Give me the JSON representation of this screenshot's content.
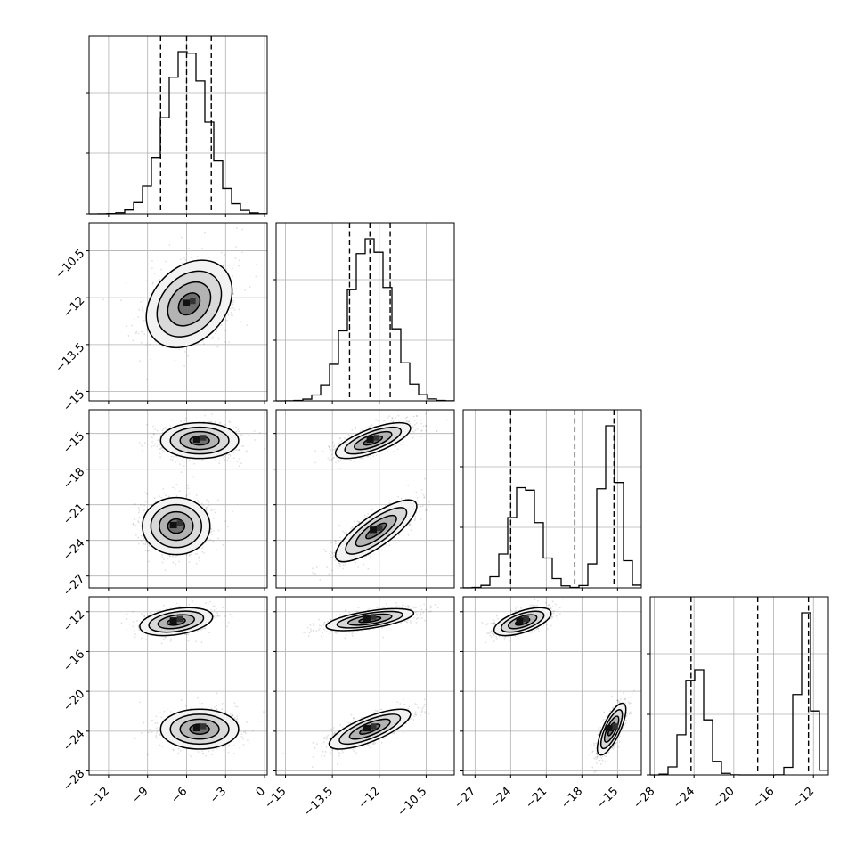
{
  "chart_data": {
    "type": "corner",
    "grid": true,
    "variables": [
      {
        "range": [
          -13.5,
          0.2
        ],
        "ticks": [
          -12,
          -9,
          -6,
          -3,
          0
        ],
        "mixture": [
          {
            "w": 1.0,
            "mean": -6.0,
            "sd": 1.6
          }
        ],
        "quantiles": [
          -8.0,
          -6.0,
          -4.1
        ]
      },
      {
        "range": [
          -15.3,
          -9.6
        ],
        "ticks": [
          -15.0,
          -13.5,
          -12.0,
          -10.5
        ],
        "mixture": [
          {
            "w": 1.0,
            "mean": -12.3,
            "sd": 0.66
          }
        ],
        "quantiles": [
          -12.95,
          -12.3,
          -11.65
        ]
      },
      {
        "range": [
          -28,
          -13
        ],
        "ticks": [
          -27,
          -24,
          -21,
          -18,
          -15
        ],
        "mixture": [
          {
            "w": 0.5,
            "mean": -22.8,
            "sd": 1.2
          },
          {
            "w": 0.5,
            "mean": -15.6,
            "sd": 0.75
          }
        ],
        "quantiles": [
          -24.0,
          -18.6,
          -15.3
        ]
      },
      {
        "range": [
          -28.4,
          -10.5
        ],
        "ticks": [
          -28,
          -24,
          -20,
          -16,
          -12
        ],
        "mixture": [
          {
            "w": 0.5,
            "mean": -23.8,
            "sd": 1.0
          },
          {
            "w": 0.5,
            "mean": -12.8,
            "sd": 0.65
          }
        ],
        "quantiles": [
          -24.3,
          -17.6,
          -12.5
        ]
      }
    ],
    "pairs": [
      {
        "x": 0,
        "y": 1,
        "clusters": [
          {
            "mx": -5.8,
            "my": -12.2,
            "sx": 1.65,
            "sy": 0.7,
            "rho": 0.3
          }
        ]
      },
      {
        "x": 0,
        "y": 2,
        "clusters": [
          {
            "mx": -5.0,
            "my": -15.6,
            "sx": 1.5,
            "sy": 0.75,
            "rho": 0.0
          },
          {
            "mx": -6.8,
            "my": -22.8,
            "sx": 1.3,
            "sy": 1.2,
            "rho": 0.0
          }
        ]
      },
      {
        "x": 1,
        "y": 2,
        "clusters": [
          {
            "mx": -12.2,
            "my": -15.6,
            "sx": 0.6,
            "sy": 0.75,
            "rho": 0.7
          },
          {
            "mx": -12.1,
            "my": -23.2,
            "sx": 0.65,
            "sy": 1.3,
            "rho": 0.8
          }
        ]
      },
      {
        "x": 0,
        "y": 3,
        "clusters": [
          {
            "mx": -6.8,
            "my": -13.0,
            "sx": 1.4,
            "sy": 0.7,
            "rho": 0.35
          },
          {
            "mx": -5.0,
            "my": -23.8,
            "sx": 1.5,
            "sy": 1.0,
            "rho": 0.0
          }
        ]
      },
      {
        "x": 1,
        "y": 3,
        "clusters": [
          {
            "mx": -12.3,
            "my": -12.8,
            "sx": 0.7,
            "sy": 0.55,
            "rho": 0.6
          },
          {
            "mx": -12.3,
            "my": -23.8,
            "sx": 0.65,
            "sy": 1.0,
            "rho": 0.75
          }
        ]
      },
      {
        "x": 2,
        "y": 3,
        "clusters": [
          {
            "mx": -23.0,
            "my": -13.0,
            "sx": 1.2,
            "sy": 0.7,
            "rho": 0.6
          },
          {
            "mx": -15.5,
            "my": -23.8,
            "sx": 0.6,
            "sy": 1.3,
            "rho": 0.75
          }
        ]
      }
    ]
  }
}
